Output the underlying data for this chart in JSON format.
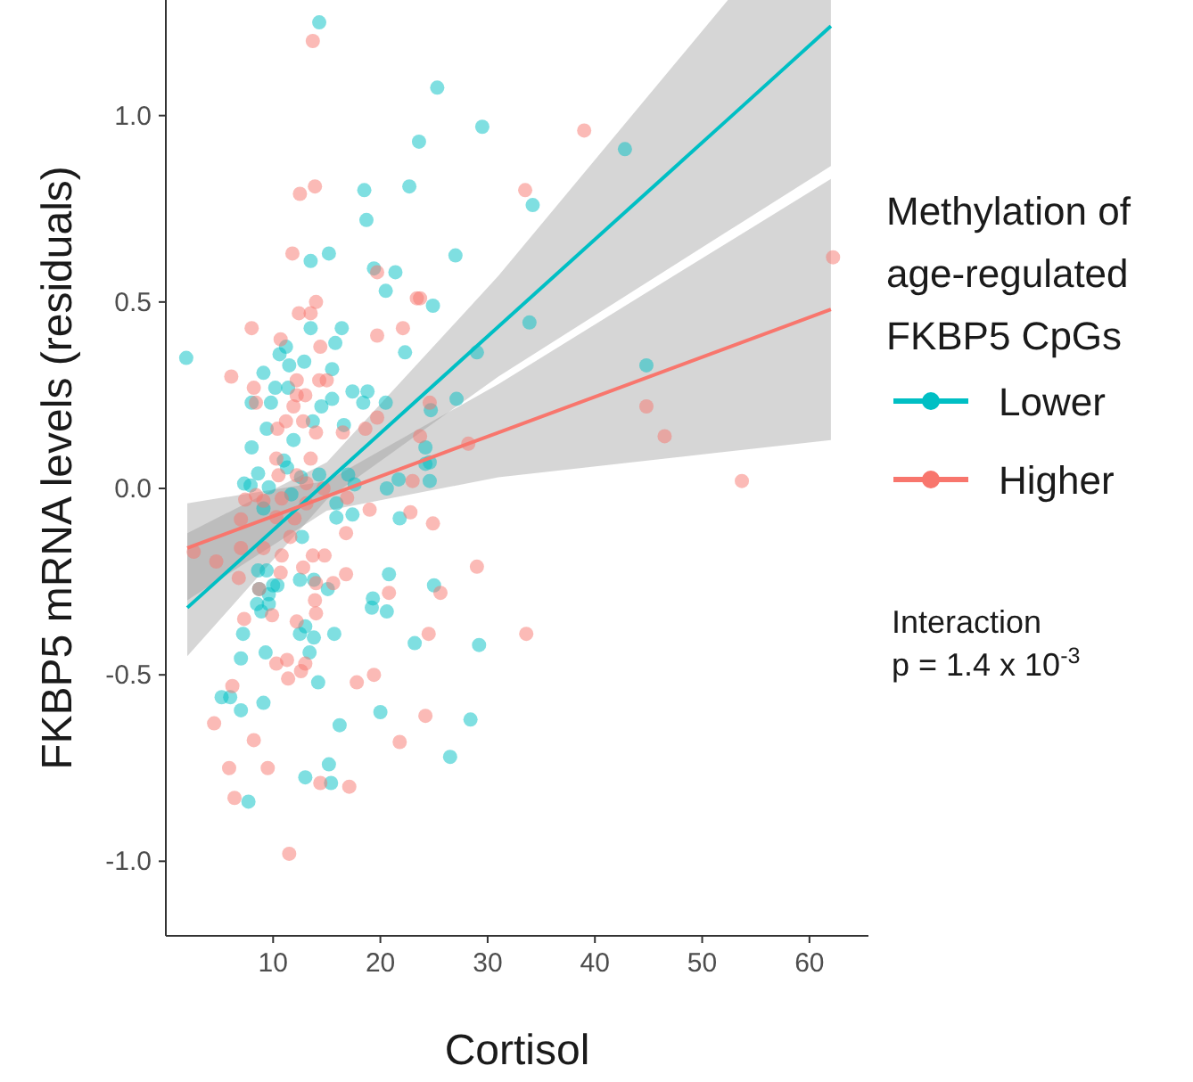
{
  "chart_data": {
    "type": "scatter",
    "xlabel": "Cortisol",
    "ylabel": "FKBP5 mRNA levels (residuals)",
    "legend_title": "Methylation of age-regulated FKBP5 CpGs",
    "legend": "right",
    "grid": false,
    "xlim": [
      0,
      65.5
    ],
    "ylim": [
      -1.2,
      1.31
    ],
    "xticks": [
      10,
      20,
      30,
      40,
      50,
      60
    ],
    "yticks": [
      {
        "value": -1,
        "label": "-1.0"
      },
      {
        "value": -0.5,
        "label": "-0.5"
      },
      {
        "value": 0,
        "label": "0.0"
      },
      {
        "value": 0.5,
        "label": "0.5"
      },
      {
        "value": 1,
        "label": "1.0"
      }
    ],
    "annotations": [
      "Interaction\np = 1.4 x 10$^{-3}$"
    ],
    "series": [
      {
        "name": "Lower",
        "marker": "circle",
        "color": "#00bfc4",
        "x": [
          14.3,
          25.3,
          29.5,
          23.6,
          18.5,
          22.7,
          18.7,
          13.5,
          15.2,
          27.0,
          19.4,
          21.4,
          20.5,
          24.9,
          1.9,
          13.5,
          16.4,
          15.8,
          22.3,
          11.2,
          10.6,
          12.9,
          11.5,
          9.1,
          15.5,
          10.2,
          11.4,
          17.4,
          18.8,
          8.0,
          9.8,
          15.5,
          14.5,
          18.4,
          20.5,
          27.1,
          29.0,
          9.4,
          13.7,
          16.6,
          11.9,
          8.0,
          24.7,
          24.2,
          11.0,
          11.3,
          8.6,
          7.3,
          7.9,
          9.6,
          12.6,
          14.3,
          11.7,
          9.1,
          17.0,
          17.6,
          24.2,
          24.6,
          24.6,
          20.6,
          21.7,
          15.9,
          15.9,
          17.4,
          12.7,
          21.8,
          8.6,
          9.4,
          12.5,
          13.8,
          10.0,
          10.4,
          8.7,
          15.1,
          20.8,
          9.6,
          8.5,
          9.6,
          8.9,
          19.3,
          19.2,
          20.6,
          25.0,
          7.2,
          12.5,
          13.0,
          13.8,
          13.4,
          15.7,
          9.3,
          7.0,
          23.2,
          29.2,
          14.2,
          5.2,
          6.0,
          7.0,
          9.1,
          20.0,
          16.2,
          28.4,
          26.5,
          15.2,
          15.4,
          13.0,
          7.7,
          42.8,
          34.2,
          33.9,
          44.8
        ],
        "values": [
          1.25,
          1.075,
          0.97,
          0.93,
          0.8,
          0.81,
          0.72,
          0.61,
          0.63,
          0.625,
          0.59,
          0.58,
          0.53,
          0.49,
          0.35,
          0.43,
          0.43,
          0.39,
          0.365,
          0.38,
          0.36,
          0.34,
          0.33,
          0.31,
          0.32,
          0.27,
          0.27,
          0.26,
          0.26,
          0.23,
          0.23,
          0.24,
          0.22,
          0.23,
          0.23,
          0.24,
          0.365,
          0.16,
          0.18,
          0.17,
          0.13,
          0.11,
          0.21,
          0.11,
          0.075,
          0.056,
          0.04,
          0.013,
          0.008,
          0.003,
          0.03,
          0.037,
          -0.016,
          -0.054,
          0.037,
          0.011,
          0.066,
          0.07,
          0.02,
          0.0,
          0.024,
          -0.04,
          -0.078,
          -0.07,
          -0.13,
          -0.08,
          -0.22,
          -0.22,
          -0.245,
          -0.245,
          -0.26,
          -0.26,
          -0.27,
          -0.27,
          -0.23,
          -0.284,
          -0.31,
          -0.31,
          -0.33,
          -0.295,
          -0.32,
          -0.33,
          -0.26,
          -0.39,
          -0.39,
          -0.37,
          -0.4,
          -0.44,
          -0.39,
          -0.44,
          -0.456,
          -0.415,
          -0.42,
          -0.52,
          -0.56,
          -0.56,
          -0.595,
          -0.575,
          -0.6,
          -0.635,
          -0.62,
          -0.72,
          -0.74,
          -0.79,
          -0.775,
          -0.84,
          0.91,
          0.76,
          0.445,
          0.33
        ]
      },
      {
        "name": "Higher",
        "marker": "circle",
        "color": "#f8766d",
        "x": [
          13.7,
          12.5,
          13.9,
          11.8,
          19.7,
          23.4,
          23.7,
          14.0,
          12.4,
          13.5,
          8.0,
          22.1,
          19.7,
          10.7,
          14.4,
          6.1,
          8.2,
          12.2,
          15.0,
          14.3,
          13.0,
          12.2,
          11.9,
          8.4,
          11.2,
          12.8,
          10.4,
          14.0,
          16.5,
          18.6,
          19.7,
          24.6,
          23.7,
          28.2,
          13.5,
          10.3,
          10.5,
          12.2,
          13.1,
          14.7,
          7.4,
          8.4,
          9.1,
          10.8,
          13.1,
          16.9,
          23.0,
          24.9,
          22.8,
          19.0,
          7.0,
          10.3,
          12.0,
          16.8,
          2.6,
          4.7,
          7.0,
          9.1,
          11.6,
          10.8,
          13.7,
          14.8,
          6.8,
          10.7,
          12.8,
          16.8,
          14.0,
          15.6,
          20.8,
          25.6,
          29.0,
          8.7,
          13.9,
          14.0,
          9.9,
          7.3,
          12.2,
          24.5,
          10.3,
          11.3,
          13.0,
          12.6,
          11.4,
          17.8,
          19.4,
          6.2,
          4.5,
          8.2,
          21.8,
          24.2,
          5.9,
          9.5,
          14.4,
          17.1,
          6.4,
          11.5,
          39.0,
          33.5,
          62.2,
          44.8,
          46.5,
          53.7,
          33.6
        ],
        "values": [
          1.2,
          0.79,
          0.81,
          0.63,
          0.58,
          0.51,
          0.51,
          0.5,
          0.47,
          0.47,
          0.43,
          0.43,
          0.41,
          0.4,
          0.38,
          0.3,
          0.27,
          0.29,
          0.29,
          0.29,
          0.25,
          0.25,
          0.22,
          0.23,
          0.18,
          0.18,
          0.16,
          0.15,
          0.15,
          0.16,
          0.19,
          0.23,
          0.14,
          0.12,
          0.08,
          0.08,
          0.035,
          0.035,
          0.014,
          0.0,
          -0.03,
          -0.018,
          -0.033,
          -0.027,
          -0.04,
          -0.025,
          0.02,
          -0.094,
          -0.064,
          -0.057,
          -0.083,
          -0.077,
          -0.08,
          -0.12,
          -0.17,
          -0.196,
          -0.16,
          -0.16,
          -0.13,
          -0.18,
          -0.18,
          -0.18,
          -0.24,
          -0.226,
          -0.212,
          -0.23,
          -0.254,
          -0.254,
          -0.28,
          -0.28,
          -0.21,
          -0.27,
          -0.3,
          -0.335,
          -0.34,
          -0.35,
          -0.357,
          -0.39,
          -0.47,
          -0.46,
          -0.47,
          -0.49,
          -0.51,
          -0.52,
          -0.5,
          -0.53,
          -0.63,
          -0.675,
          -0.68,
          -0.61,
          -0.75,
          -0.75,
          -0.79,
          -0.8,
          -0.83,
          -0.98,
          0.96,
          0.8,
          0.62,
          0.22,
          0.14,
          0.02,
          -0.39
        ]
      },
      {
        "type": "line",
        "marker": "none",
        "color": "#00bfc4",
        "x": [
          2,
          15,
          31,
          52.4,
          62
        ],
        "values": [
          -0.32,
          0.018,
          0.434,
          0.99,
          1.24
        ],
        "lower": [
          -0.45,
          -0.03,
          0.3,
          0.69,
          0.865
        ],
        "upper": [
          -0.12,
          0.07,
          0.57,
          1.31,
          1.31
        ]
      },
      {
        "type": "line",
        "marker": "none",
        "color": "#f8766d",
        "x": [
          2,
          15,
          31,
          62
        ],
        "values": [
          -0.16,
          -0.021,
          0.15,
          0.48
        ],
        "lower": [
          -0.3,
          -0.06,
          0.03,
          0.13
        ],
        "upper": [
          -0.04,
          0.02,
          0.28,
          0.83
        ]
      }
    ]
  }
}
